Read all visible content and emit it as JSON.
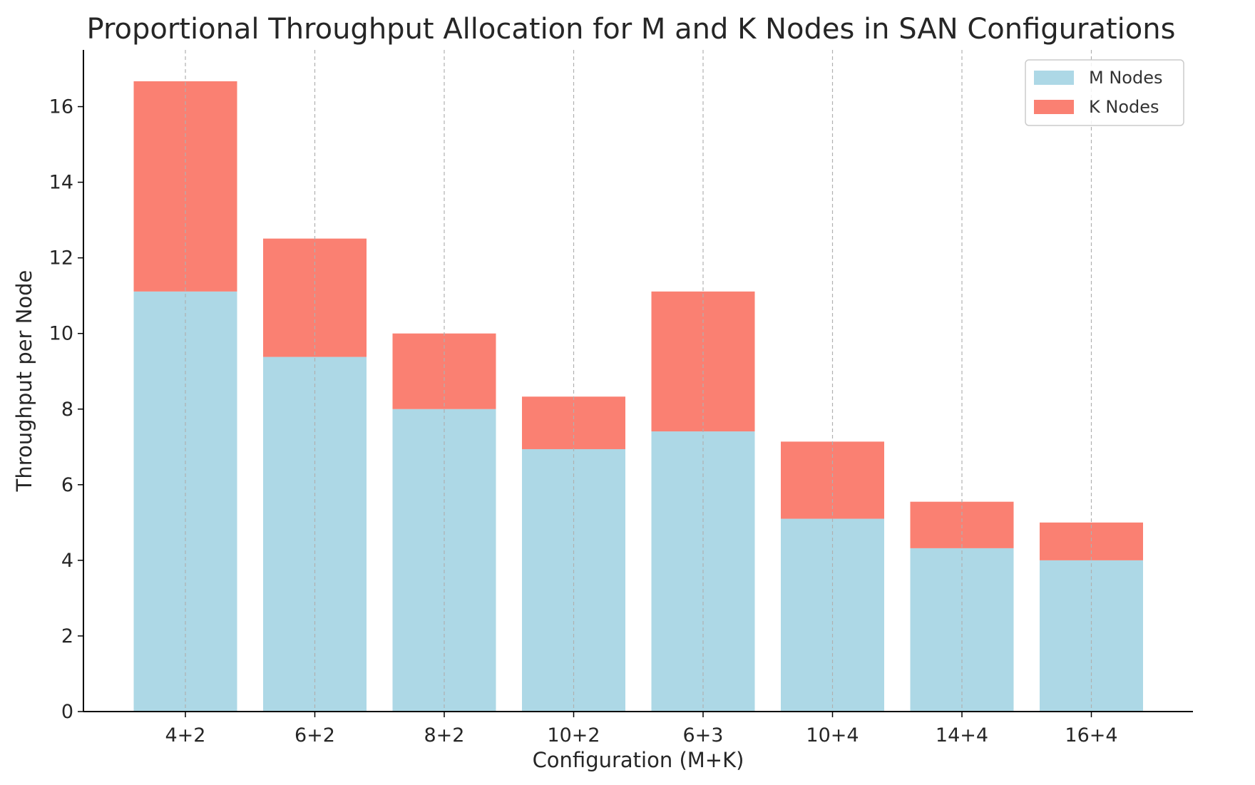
{
  "chart_data": {
    "type": "bar",
    "stacked": true,
    "title": "Proportional Throughput Allocation for M and K Nodes in SAN Configurations",
    "xlabel": "Configuration (M+K)",
    "ylabel": "Throughput per Node",
    "categories": [
      "4+2",
      "6+2",
      "8+2",
      "10+2",
      "6+3",
      "10+4",
      "14+4",
      "16+4"
    ],
    "series": [
      {
        "name": "M Nodes",
        "color": "#add8e6",
        "values": [
          11.11,
          9.38,
          8.0,
          6.94,
          7.41,
          5.1,
          4.32,
          4.0
        ]
      },
      {
        "name": "K Nodes",
        "color": "#fa8072",
        "values": [
          5.56,
          3.13,
          2.0,
          1.39,
          3.7,
          2.04,
          1.23,
          1.0
        ]
      }
    ],
    "ylim": [
      0,
      17.5
    ],
    "yticks": [
      0,
      2,
      4,
      6,
      8,
      10,
      12,
      14,
      16
    ],
    "grid": {
      "x": true,
      "y": false,
      "style": "dashed"
    },
    "legend_position": "top-right"
  }
}
